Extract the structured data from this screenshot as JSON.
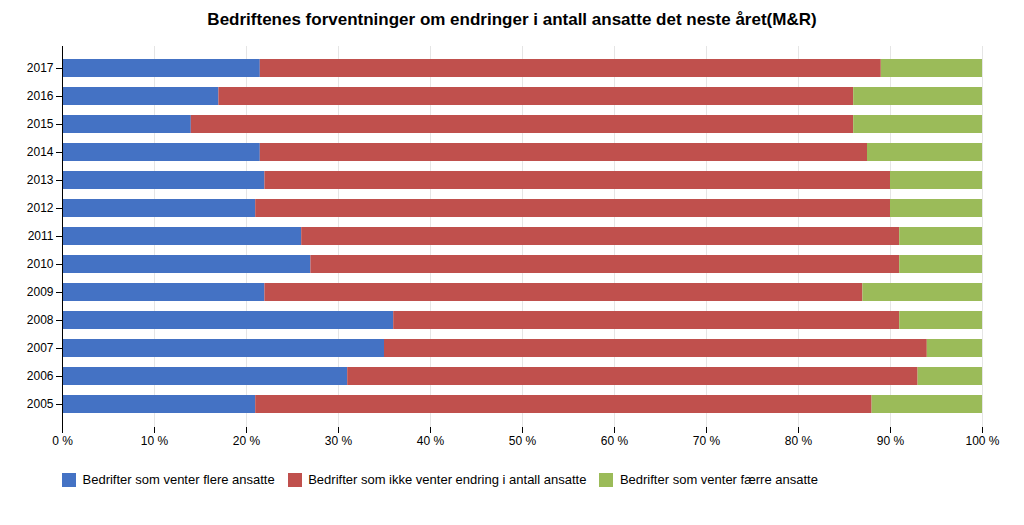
{
  "chart_data": {
    "type": "bar",
    "title": "Bedriftenes forventninger om endringer i antall ansatte det neste året(M&R)",
    "orientation": "horizontal",
    "stacked": true,
    "categories": [
      "2005",
      "2006",
      "2007",
      "2008",
      "2009",
      "2010",
      "2011",
      "2012",
      "2013",
      "2014",
      "2015",
      "2016",
      "2017"
    ],
    "series": [
      {
        "name": "Bedrifter som venter flere ansatte",
        "color": "#4472C4",
        "values": [
          21.0,
          31.0,
          35.0,
          36.0,
          22.0,
          27.0,
          26.0,
          21.0,
          22.0,
          21.5,
          14.0,
          17.0,
          21.5
        ]
      },
      {
        "name": "Bedrifter som ikke venter endring i antall ansatte",
        "color": "#C0504D",
        "values": [
          67.0,
          62.0,
          59.0,
          55.0,
          65.0,
          64.0,
          65.0,
          69.0,
          68.0,
          66.0,
          72.0,
          69.0,
          67.5
        ]
      },
      {
        "name": "Bedrifter som venter færre ansatte",
        "color": "#9BBB59",
        "values": [
          12.0,
          7.0,
          6.0,
          9.0,
          13.0,
          9.0,
          9.0,
          10.0,
          10.0,
          12.5,
          14.0,
          14.0,
          11.0
        ]
      }
    ],
    "xlim": [
      0,
      100
    ],
    "xticks": [
      {
        "value": 0,
        "label": "0 %"
      },
      {
        "value": 10,
        "label": "10 %"
      },
      {
        "value": 20,
        "label": "20 %"
      },
      {
        "value": 30,
        "label": "30 %"
      },
      {
        "value": 40,
        "label": "40 %"
      },
      {
        "value": 50,
        "label": "50 %"
      },
      {
        "value": 60,
        "label": "60 %"
      },
      {
        "value": 70,
        "label": "70 %"
      },
      {
        "value": 80,
        "label": "80 %"
      },
      {
        "value": 90,
        "label": "90 %"
      },
      {
        "value": 100,
        "label": "100 %"
      }
    ],
    "grid": true,
    "legend": "bottom"
  }
}
